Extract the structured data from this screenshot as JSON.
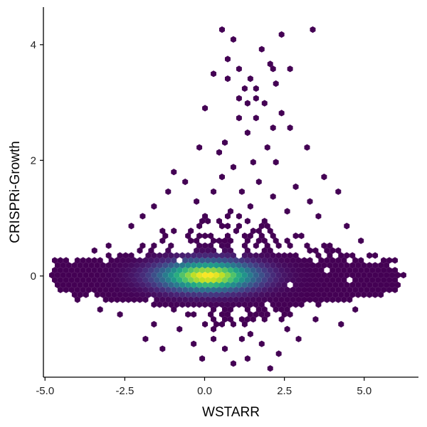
{
  "chart_data": {
    "type": "heatmap",
    "subtype": "hexbin",
    "title": "",
    "xlabel": "WSTARR",
    "ylabel": "CRISPRi-Growth",
    "xlim": [
      -5.05,
      6.7
    ],
    "ylim": [
      -1.75,
      4.65
    ],
    "x_ticks": [
      -5.0,
      -2.5,
      0.0,
      2.5,
      5.0
    ],
    "x_tick_labels": [
      "-5.0",
      "-2.5",
      "0.0",
      "2.5",
      "5.0"
    ],
    "y_ticks": [
      0,
      2,
      4
    ],
    "y_tick_labels": [
      "0",
      "2",
      "4"
    ],
    "grid": false,
    "legend": "none",
    "colormap": [
      "#440154",
      "#482475",
      "#414487",
      "#355f8d",
      "#2a788e",
      "#21918c",
      "#22a884",
      "#44bf70",
      "#7ad151",
      "#bddf26",
      "#fde725"
    ],
    "density_peak": {
      "x": 0.1,
      "y": 0.0
    },
    "density_spread": {
      "x": 1.0,
      "y": 0.17
    },
    "core_extent": {
      "x": [
        -4.6,
        6.0
      ],
      "y": [
        -0.55,
        0.4
      ]
    },
    "points": [
      [
        0.5,
        4.3
      ],
      [
        3.35,
        4.3
      ],
      [
        0.85,
        4.1
      ],
      [
        2.5,
        4.2
      ],
      [
        1.8,
        3.9
      ],
      [
        0.75,
        3.75
      ],
      [
        1.1,
        3.6
      ],
      [
        2.0,
        3.65
      ],
      [
        0.35,
        3.5
      ],
      [
        1.4,
        3.45
      ],
      [
        2.2,
        3.55
      ],
      [
        2.7,
        3.55
      ],
      [
        0.65,
        3.4
      ],
      [
        1.2,
        3.25
      ],
      [
        1.7,
        3.2
      ],
      [
        2.3,
        3.35
      ],
      [
        1.0,
        3.05
      ],
      [
        1.3,
        2.95
      ],
      [
        1.55,
        3.1
      ],
      [
        1.9,
        2.95
      ],
      [
        0.1,
        2.9
      ],
      [
        2.4,
        2.8
      ],
      [
        1.6,
        2.75
      ],
      [
        1.1,
        2.7
      ],
      [
        2.1,
        2.55
      ],
      [
        2.65,
        2.6
      ],
      [
        1.3,
        2.45
      ],
      [
        0.7,
        2.35
      ],
      [
        1.95,
        2.25
      ],
      [
        -0.2,
        2.2
      ],
      [
        3.2,
        2.2
      ],
      [
        0.4,
        2.1
      ],
      [
        1.45,
        2.0
      ],
      [
        2.3,
        1.95
      ],
      [
        0.95,
        1.85
      ],
      [
        -1.0,
        1.8
      ],
      [
        3.8,
        1.75
      ],
      [
        0.6,
        1.7
      ],
      [
        1.75,
        1.65
      ],
      [
        -0.6,
        1.6
      ],
      [
        2.8,
        1.55
      ],
      [
        1.2,
        1.5
      ],
      [
        -1.2,
        1.45
      ],
      [
        0.2,
        1.45
      ],
      [
        4.1,
        1.45
      ],
      [
        2.1,
        1.35
      ],
      [
        -0.3,
        1.3
      ],
      [
        3.3,
        1.25
      ],
      [
        -1.6,
        1.2
      ],
      [
        1.5,
        1.2
      ],
      [
        0.8,
        1.1
      ],
      [
        2.6,
        1.1
      ],
      [
        -1.9,
        1.05
      ],
      [
        3.6,
        1.0
      ],
      [
        0.0,
        0.95
      ],
      [
        -2.3,
        0.9
      ],
      [
        1.9,
        0.85
      ],
      [
        4.4,
        0.85
      ],
      [
        -1.4,
        0.8
      ],
      [
        -0.5,
        0.75
      ],
      [
        2.9,
        0.7
      ],
      [
        4.9,
        0.6
      ],
      [
        -3.0,
        0.55
      ],
      [
        -2.0,
        0.55
      ],
      [
        3.8,
        0.5
      ],
      [
        -3.5,
        0.4
      ],
      [
        5.3,
        0.35
      ],
      [
        -4.3,
        0.25
      ],
      [
        5.9,
        0.25
      ],
      [
        -4.7,
        0.05
      ],
      [
        6.2,
        0.05
      ],
      [
        -4.4,
        -0.2
      ],
      [
        6.0,
        -0.15
      ],
      [
        -3.9,
        -0.45
      ],
      [
        5.5,
        -0.35
      ],
      [
        -3.3,
        -0.6
      ],
      [
        4.8,
        -0.55
      ],
      [
        -2.7,
        -0.7
      ],
      [
        3.5,
        -0.75
      ],
      [
        -1.6,
        -0.8
      ],
      [
        4.2,
        -0.8
      ],
      [
        -0.8,
        -0.9
      ],
      [
        2.6,
        -0.95
      ],
      [
        -1.9,
        -1.05
      ],
      [
        0.3,
        -1.05
      ],
      [
        1.2,
        -1.1
      ],
      [
        3.0,
        -1.1
      ],
      [
        -0.4,
        -1.15
      ],
      [
        1.8,
        -1.2
      ],
      [
        -1.3,
        -1.3
      ],
      [
        0.7,
        -1.3
      ],
      [
        2.4,
        -1.35
      ],
      [
        -0.1,
        -1.4
      ],
      [
        1.4,
        -1.45
      ],
      [
        0.9,
        -1.55
      ],
      [
        2.0,
        -1.6
      ]
    ]
  }
}
